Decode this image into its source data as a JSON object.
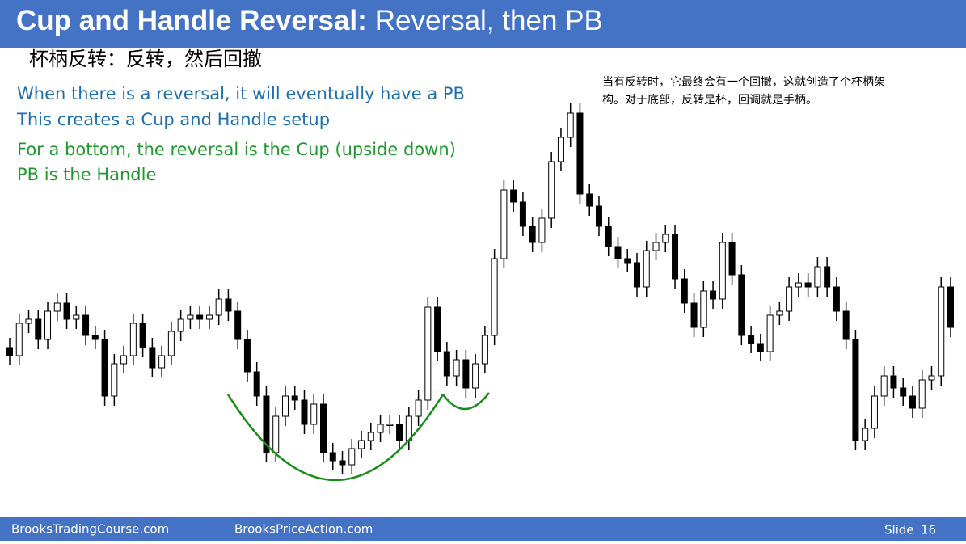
{
  "header": {
    "title_bold": "Cup and Handle Reversal:",
    "title_rest": "Reversal, then PB"
  },
  "subtitle_cn": "杯柄反转：反转，然后回撤",
  "notes": [
    {
      "text": "When there is a reversal, it will eventually have a PB",
      "color": "#1f6fb0"
    },
    {
      "text": "This creates a Cup and Handle setup",
      "color": "#1f6fb0"
    },
    {
      "text": "For a bottom, the reversal is the Cup (upside down)",
      "color": "#1e9a2e"
    },
    {
      "text": "PB is the Handle",
      "color": "#1e9a2e"
    }
  ],
  "note_cn": [
    "当有反转时，它最终会有一个回撤，这就创造了个杯柄架",
    "构。对于底部，反转是杯，回调就是手柄。"
  ],
  "footer": {
    "left": "BrooksTradingCourse.com",
    "middle": "BrooksPriceAction.com",
    "slide_label": "Slide",
    "slide_number": 16
  },
  "chart_data": {
    "type": "candlestick",
    "open": [
      190,
      180,
      220,
      225,
      200,
      235,
      245,
      225,
      230,
      205,
      200,
      130,
      170,
      180,
      220,
      190,
      165,
      180,
      210,
      225,
      230,
      225,
      230,
      250,
      235,
      200,
      160,
      130,
      60,
      105,
      130,
      125,
      95,
      120,
      60,
      50,
      45,
      65,
      75,
      85,
      95,
      95,
      75,
      105,
      125,
      240,
      185,
      155,
      175,
      140,
      170,
      205,
      300,
      385,
      370,
      340,
      320,
      350,
      420,
      450,
      480,
      380,
      365,
      340,
      315,
      300,
      295,
      265,
      310,
      320,
      330,
      275,
      245,
      215,
      260,
      250,
      320,
      280,
      205,
      195,
      185,
      230,
      235,
      265,
      270,
      265,
      290,
      265,
      235,
      200,
      75,
      90,
      130,
      155,
      140,
      130,
      115,
      150,
      155,
      265
    ],
    "high": [
      202,
      232,
      237,
      237,
      247,
      257,
      257,
      242,
      242,
      217,
      212,
      182,
      192,
      232,
      232,
      202,
      192,
      222,
      237,
      242,
      242,
      242,
      262,
      262,
      247,
      212,
      172,
      142,
      117,
      142,
      142,
      137,
      132,
      132,
      72,
      62,
      77,
      87,
      97,
      107,
      107,
      107,
      117,
      137,
      252,
      252,
      197,
      187,
      187,
      182,
      217,
      312,
      397,
      397,
      382,
      352,
      362,
      432,
      462,
      492,
      492,
      392,
      377,
      352,
      327,
      312,
      307,
      322,
      332,
      342,
      342,
      287,
      257,
      272,
      272,
      332,
      332,
      292,
      217,
      207,
      242,
      247,
      277,
      282,
      282,
      302,
      302,
      277,
      247,
      212,
      102,
      142,
      167,
      167,
      152,
      142,
      162,
      167,
      277,
      277
    ],
    "low": [
      168,
      168,
      208,
      188,
      188,
      223,
      213,
      213,
      193,
      188,
      118,
      118,
      158,
      168,
      178,
      153,
      153,
      168,
      198,
      213,
      213,
      213,
      218,
      223,
      188,
      148,
      118,
      48,
      48,
      93,
      113,
      83,
      83,
      48,
      38,
      33,
      33,
      53,
      63,
      73,
      83,
      63,
      63,
      93,
      113,
      173,
      143,
      143,
      128,
      128,
      158,
      193,
      288,
      358,
      328,
      308,
      308,
      338,
      408,
      438,
      368,
      353,
      328,
      303,
      288,
      283,
      253,
      253,
      298,
      308,
      263,
      233,
      203,
      203,
      238,
      238,
      268,
      193,
      183,
      173,
      173,
      218,
      223,
      253,
      253,
      253,
      253,
      223,
      188,
      63,
      63,
      78,
      118,
      128,
      118,
      103,
      103,
      138,
      143,
      203
    ],
    "close": [
      180,
      220,
      225,
      200,
      235,
      245,
      225,
      230,
      205,
      200,
      130,
      170,
      180,
      220,
      190,
      165,
      180,
      210,
      225,
      230,
      225,
      230,
      250,
      235,
      200,
      160,
      130,
      60,
      105,
      130,
      125,
      95,
      120,
      60,
      50,
      45,
      65,
      75,
      85,
      95,
      95,
      75,
      105,
      125,
      240,
      185,
      155,
      175,
      140,
      170,
      205,
      300,
      385,
      370,
      340,
      320,
      350,
      420,
      450,
      480,
      380,
      365,
      340,
      315,
      300,
      295,
      265,
      310,
      320,
      330,
      275,
      245,
      215,
      260,
      250,
      320,
      280,
      205,
      195,
      185,
      230,
      235,
      265,
      270,
      265,
      290,
      265,
      235,
      200,
      75,
      90,
      130,
      155,
      140,
      130,
      115,
      150,
      155,
      265,
      215
    ],
    "up_color": "#ffffff",
    "down_color": "#000000"
  }
}
